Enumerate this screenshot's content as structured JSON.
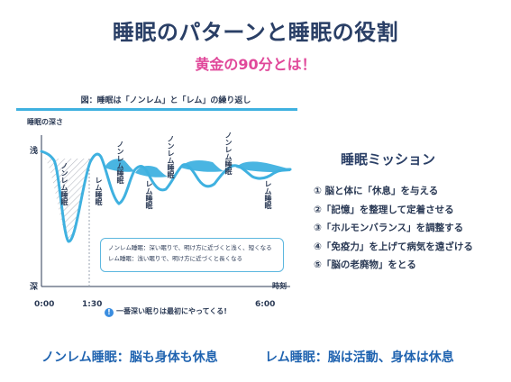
{
  "header": {
    "title": "睡眠のパターンと睡眠の役割",
    "subtitle": "黄金の90分とは！"
  },
  "figure": {
    "caption": "図：睡眠は「ノンレム」と「レム」の繰り返し",
    "ylabel": "睡眠の深さ",
    "shallow": "浅",
    "deep": "深",
    "xlabel": "時刻",
    "ticks": [
      "0:00",
      "1:30",
      "6:00"
    ],
    "stage_labels": {
      "nonrem_first": "ノンレム睡眠",
      "rem_first": "レム睡眠",
      "rem_second": "レム睡眠",
      "nonrem_top1": "ノンレム睡眠",
      "nonrem_top2": "ノンレム睡眠",
      "nonrem_top3": "ノンレム睡眠",
      "rem_last": "レム睡眠"
    },
    "legend": [
      "ノンレム睡眠：深い眠りで、明け方に近づくと浅く、短くなる",
      "レム睡眠：浅い眠りで、明け方に近づくと長くなる"
    ],
    "note_icon": "!",
    "note": "一番深い眠りは最初にやってくる!",
    "colors": {
      "curve": "#3fb1e0",
      "fill": "#3fb1e0",
      "hatch": "#b8bcc4"
    }
  },
  "mission": {
    "title": "睡眠ミッション",
    "items": [
      "① 脳と体に「休息」を与える",
      "②「記憶」を整理して定着させる",
      "③「ホルモンバランス」を調整する",
      "④「免疫力」を上げて病気を遠ざける",
      "⑤「脳の老廃物」をとる"
    ]
  },
  "footer": {
    "nonrem": "ノンレム睡眠：脳も身体も休息",
    "rem": "レム睡眠：脳は活動、身体は休息"
  }
}
